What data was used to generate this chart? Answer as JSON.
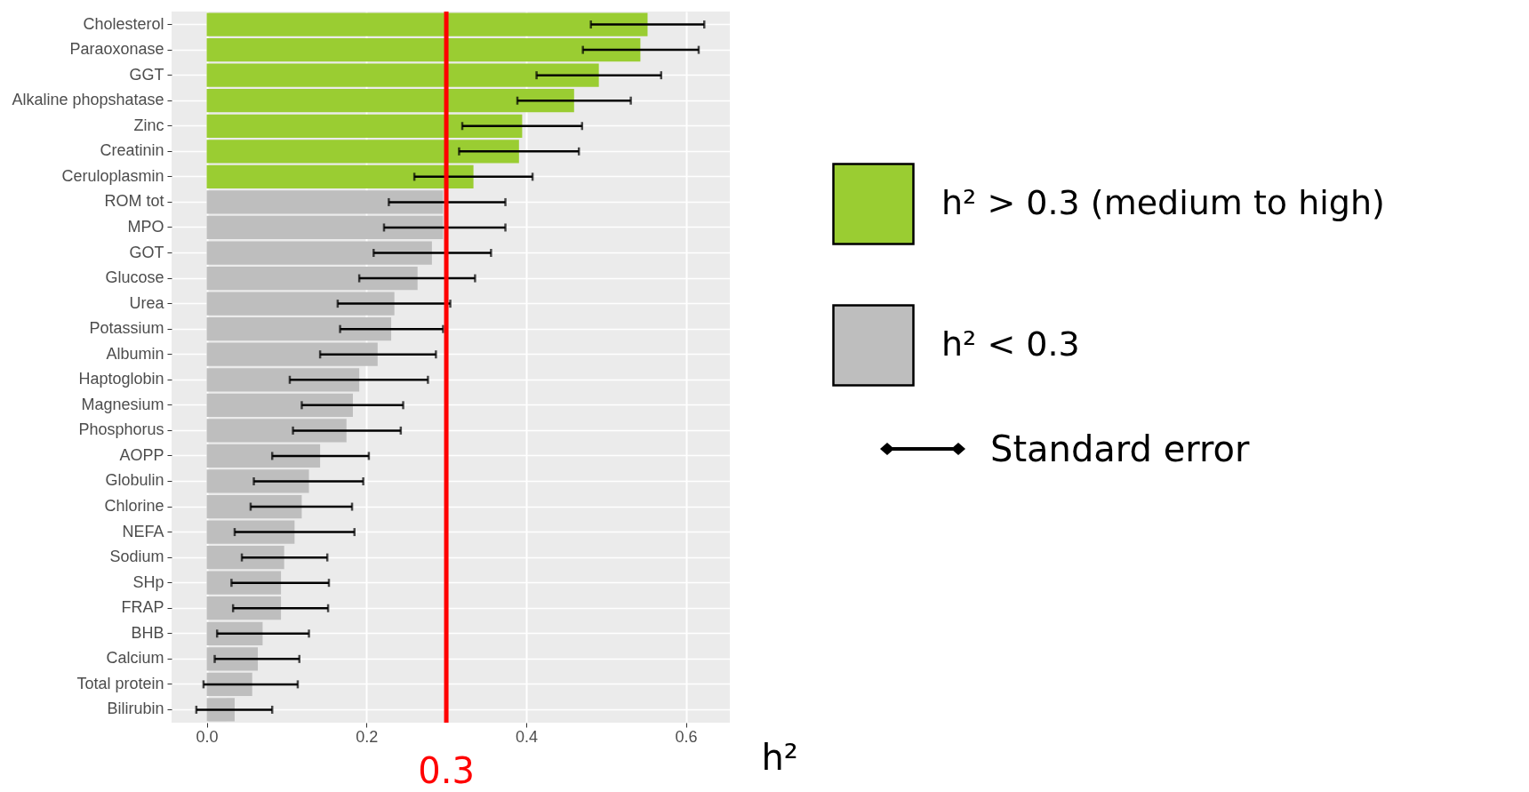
{
  "chart_data": {
    "type": "bar",
    "orientation": "horizontal",
    "categories": [
      "Cholesterol",
      "Paraoxonase",
      "GGT",
      "Alkaline phopshatase",
      "Zinc",
      "Creatinin",
      "Ceruloplasmin",
      "ROM tot",
      "MPO",
      "GOT",
      "Glucose",
      "Urea",
      "Potassium",
      "Albumin",
      "Haptoglobin",
      "Magnesium",
      "Phosphorus",
      "AOPP",
      "Globulin",
      "Chlorine",
      "NEFA",
      "Sodium",
      "SHp",
      "FRAP",
      "BHB",
      "Calcium",
      "Total protein",
      "Bilirubin"
    ],
    "series": [
      {
        "name": "h² > 0.3 (medium to high)",
        "color": "#9acd32",
        "values": [
          0.552,
          0.543,
          0.491,
          0.46,
          0.395,
          0.391,
          0.334,
          null,
          null,
          null,
          null,
          null,
          null,
          null,
          null,
          null,
          null,
          null,
          null,
          null,
          null,
          null,
          null,
          null,
          null,
          null,
          null,
          null
        ],
        "errors": [
          [
            0.481,
            0.623
          ],
          [
            0.471,
            0.616
          ],
          [
            0.413,
            0.569
          ],
          [
            0.389,
            0.531
          ],
          [
            0.32,
            0.47
          ],
          [
            0.316,
            0.466
          ],
          [
            0.26,
            0.408
          ],
          null,
          null,
          null,
          null,
          null,
          null,
          null,
          null,
          null,
          null,
          null,
          null,
          null,
          null,
          null,
          null,
          null,
          null,
          null,
          null,
          null
        ]
      },
      {
        "name": "h² < 0.3",
        "color": "#bebebe",
        "values": [
          null,
          null,
          null,
          null,
          null,
          null,
          null,
          0.296,
          0.296,
          0.282,
          0.264,
          0.235,
          0.231,
          0.214,
          0.191,
          0.183,
          0.175,
          0.142,
          0.128,
          0.119,
          0.11,
          0.097,
          0.093,
          0.093,
          0.07,
          0.064,
          0.057,
          0.035
        ],
        "errors": [
          null,
          null,
          null,
          null,
          null,
          null,
          null,
          [
            0.228,
            0.374
          ],
          [
            0.222,
            0.374
          ],
          [
            0.209,
            0.356
          ],
          [
            0.191,
            0.336
          ],
          [
            0.164,
            0.305
          ],
          [
            0.167,
            0.296
          ],
          [
            0.142,
            0.287
          ],
          [
            0.104,
            0.277
          ],
          [
            0.119,
            0.246
          ],
          [
            0.108,
            0.243
          ],
          [
            0.082,
            0.203
          ],
          [
            0.059,
            0.196
          ],
          [
            0.055,
            0.182
          ],
          [
            0.035,
            0.185
          ],
          [
            0.044,
            0.151
          ],
          [
            0.031,
            0.153
          ],
          [
            0.033,
            0.152
          ],
          [
            0.013,
            0.128
          ],
          [
            0.01,
            0.116
          ],
          [
            -0.004,
            0.114
          ],
          [
            -0.013,
            0.082
          ]
        ]
      }
    ],
    "xlabel": "h²",
    "xlim": [
      -0.044,
      0.655
    ],
    "xticks": [
      {
        "value": 0,
        "label": "0.0"
      },
      0.2,
      0.4,
      0.6
    ],
    "ref_lines": [
      {
        "axis": "x",
        "value": 0.3,
        "label": "0.3",
        "color": "#ff0000"
      }
    ],
    "annotations": [
      "Standard error"
    ],
    "grid": true,
    "legend": "right"
  }
}
